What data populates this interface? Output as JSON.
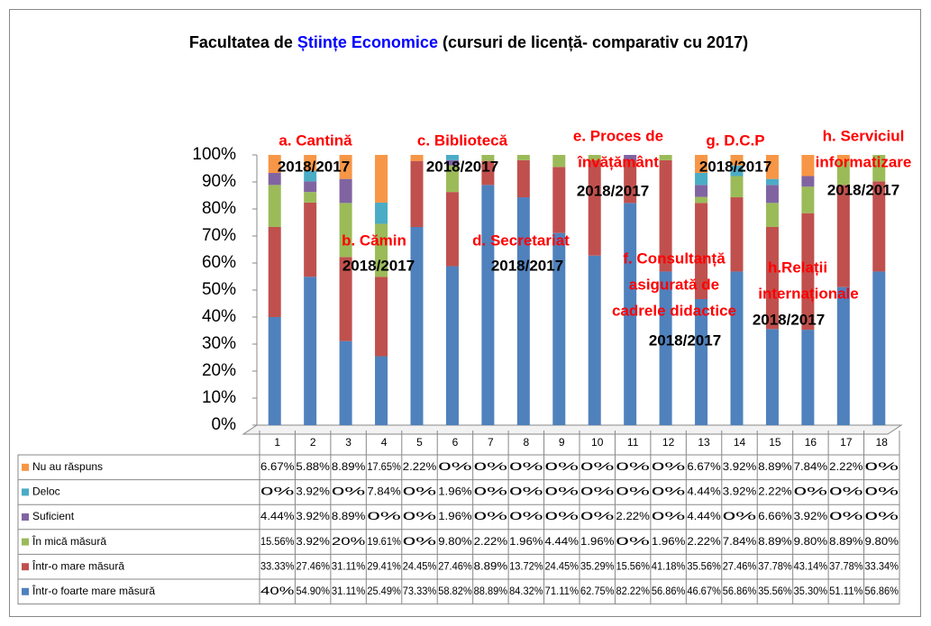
{
  "chart_data": {
    "type": "stacked_bar_100",
    "title_segments": [
      {
        "text": "Facultatea de ",
        "color": "#000000"
      },
      {
        "text": "Științe Economice",
        "color": "#0000ff"
      },
      {
        "text": " (cursuri de licență- comparativ cu 2017)",
        "color": "#000000"
      }
    ],
    "categories": [
      "1",
      "2",
      "3",
      "4",
      "5",
      "6",
      "7",
      "8",
      "9",
      "10",
      "11",
      "12",
      "13",
      "14",
      "15",
      "16",
      "17",
      "18"
    ],
    "ylim": [
      0,
      100
    ],
    "yticks": [
      {
        "value": 0,
        "label": "0%"
      },
      {
        "value": 10,
        "label": "10%"
      },
      {
        "value": 20,
        "label": "20%"
      },
      {
        "value": 30,
        "label": "30%"
      },
      {
        "value": 40,
        "label": "40%"
      },
      {
        "value": 50,
        "label": "50%"
      },
      {
        "value": 60,
        "label": "60%"
      },
      {
        "value": 70,
        "label": "70%"
      },
      {
        "value": 80,
        "label": "80%"
      },
      {
        "value": 90,
        "label": "90%"
      },
      {
        "value": 100,
        "label": "100%"
      }
    ],
    "series": [
      {
        "name": "Într-o foarte mare măsură",
        "color": "#4f81bd",
        "values": [
          40,
          54.9,
          31.11,
          25.49,
          73.33,
          58.82,
          88.89,
          84.32,
          71.11,
          62.75,
          82.22,
          56.86,
          46.67,
          56.86,
          35.56,
          35.3,
          51.11,
          56.86
        ],
        "value_labels": [
          "40%",
          "54.90%",
          "31.11%",
          "25.49%",
          "73.33%",
          "58.82%",
          "88.89%",
          "84.32%",
          "71.11%",
          "62.75%",
          "82.22%",
          "56.86%",
          "46.67%",
          "56.86%",
          "35.56%",
          "35.30%",
          "51.11%",
          "56.86%"
        ]
      },
      {
        "name": "Într-o mare măsură",
        "color": "#c0504d",
        "values": [
          33.33,
          27.46,
          31.11,
          29.41,
          24.45,
          27.46,
          8.89,
          13.72,
          24.45,
          35.29,
          15.56,
          41.18,
          35.56,
          27.46,
          37.78,
          43.14,
          37.78,
          33.34
        ],
        "value_labels": [
          "33.33%",
          "27.46%",
          "31.11%",
          "29.41%",
          "24.45%",
          "27.46%",
          "8.89%",
          "13.72%",
          "24.45%",
          "35.29%",
          "15.56%",
          "41.18%",
          "35.56%",
          "27.46%",
          "37.78%",
          "43.14%",
          "37.78%",
          "33.34%"
        ]
      },
      {
        "name": "În mică măsură",
        "color": "#9bbb59",
        "values": [
          15.56,
          3.92,
          20,
          19.61,
          0,
          9.8,
          2.22,
          1.96,
          4.44,
          1.96,
          0,
          1.96,
          2.22,
          7.84,
          8.89,
          9.8,
          8.89,
          9.8
        ],
        "value_labels": [
          "15.56%",
          "3.92%",
          "20%",
          "19.61%",
          "0%",
          "9.80%",
          "2.22%",
          "1.96%",
          "4.44%",
          "1.96%",
          "0%",
          "1.96%",
          "2.22%",
          "7.84%",
          "8.89%",
          "9.80%",
          "8.89%",
          "9.80%"
        ]
      },
      {
        "name": "Suficient",
        "color": "#8064a2",
        "values": [
          4.44,
          3.92,
          8.89,
          0,
          0,
          1.96,
          0,
          0,
          0,
          0,
          2.22,
          0,
          4.44,
          0,
          6.66,
          3.92,
          0,
          0
        ],
        "value_labels": [
          "4.44%",
          "3.92%",
          "8.89%",
          "0%",
          "0%",
          "1.96%",
          "0%",
          "0%",
          "0%",
          "0%",
          "2.22%",
          "0%",
          "4.44%",
          "0%",
          "6.66%",
          "3.92%",
          "0%",
          "0%"
        ]
      },
      {
        "name": "Deloc",
        "color": "#4bacc6",
        "values": [
          0,
          3.92,
          0,
          7.84,
          0,
          1.96,
          0,
          0,
          0,
          0,
          0,
          0,
          4.44,
          3.92,
          2.22,
          0,
          0,
          0
        ],
        "value_labels": [
          "0%",
          "3.92%",
          "0%",
          "7.84%",
          "0%",
          "1.96%",
          "0%",
          "0%",
          "0%",
          "0%",
          "0%",
          "0%",
          "4.44%",
          "3.92%",
          "2.22%",
          "0%",
          "0%",
          "0%"
        ]
      },
      {
        "name": "Nu au răspuns",
        "color": "#f79646",
        "values": [
          6.67,
          5.88,
          8.89,
          17.65,
          2.22,
          0,
          0,
          0,
          0,
          0,
          0,
          0,
          6.67,
          3.92,
          8.89,
          7.84,
          2.22,
          0
        ],
        "value_labels": [
          "6.67%",
          "5.88%",
          "8.89%",
          "17.65%",
          "2.22%",
          "0%",
          "0%",
          "0%",
          "0%",
          "0%",
          "0%",
          "0%",
          "6.67%",
          "3.92%",
          "8.89%",
          "7.84%",
          "2.22%",
          "0%"
        ]
      }
    ],
    "annotations": [
      {
        "lines": [
          "a. Cantină"
        ],
        "color": "#ff0000"
      },
      {
        "lines": [
          "2018/2017"
        ],
        "color": "#000000"
      },
      {
        "lines": [
          "b. Cămin"
        ],
        "color": "#ff0000"
      },
      {
        "lines": [
          "2018/2017"
        ],
        "color": "#000000"
      },
      {
        "lines": [
          "c. Bibliotecă"
        ],
        "color": "#ff0000"
      },
      {
        "lines": [
          "2018/2017"
        ],
        "color": "#000000"
      },
      {
        "lines": [
          "d. Secretariat"
        ],
        "color": "#ff0000"
      },
      {
        "lines": [
          "2018/2017"
        ],
        "color": "#000000"
      },
      {
        "lines": [
          "e. Proces de",
          "învățământ"
        ],
        "color": "#ff0000"
      },
      {
        "lines": [
          "2018/2017"
        ],
        "color": "#000000"
      },
      {
        "lines": [
          "f. Consultanță",
          "asigurată de",
          "cadrele didactice"
        ],
        "color": "#ff0000"
      },
      {
        "lines": [
          "2018/2017"
        ],
        "color": "#000000"
      },
      {
        "lines": [
          "g. D.C.P"
        ],
        "color": "#ff0000"
      },
      {
        "lines": [
          "2018/2017"
        ],
        "color": "#000000"
      },
      {
        "lines": [
          "h.Relații",
          "internaționale"
        ],
        "color": "#ff0000"
      },
      {
        "lines": [
          "2018/2017"
        ],
        "color": "#000000"
      },
      {
        "lines": [
          "h. Serviciul",
          "informatizare"
        ],
        "color": "#ff0000"
      },
      {
        "lines": [
          "2018/2017"
        ],
        "color": "#000000"
      }
    ]
  }
}
